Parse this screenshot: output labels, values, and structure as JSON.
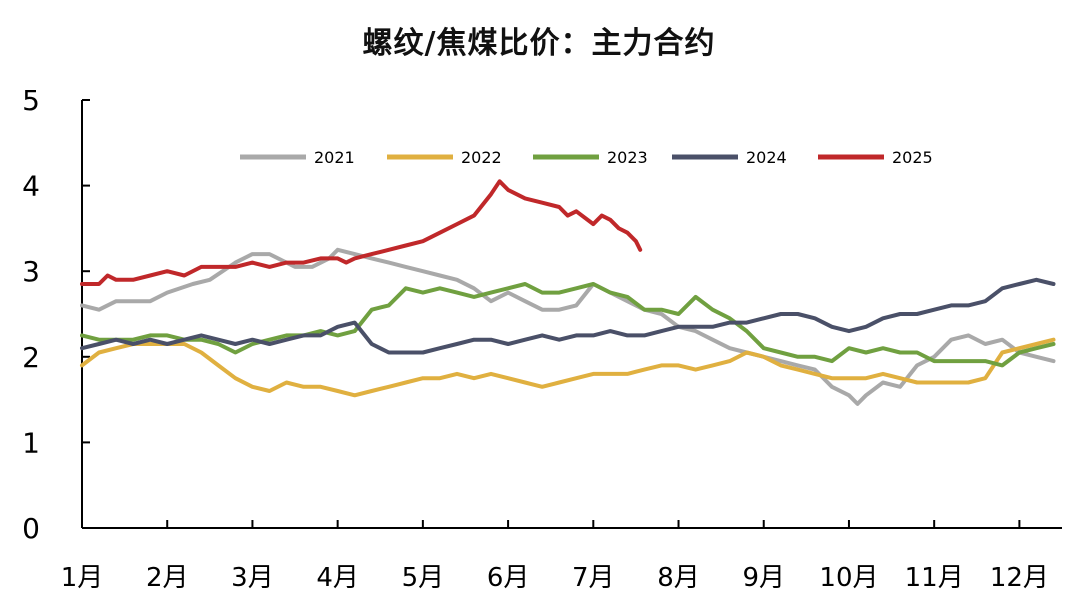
{
  "chart_data": {
    "type": "line",
    "title": "螺纹/焦煤比价：主力合约",
    "xlabel": "",
    "ylabel": "",
    "x_categories": [
      "1月",
      "2月",
      "3月",
      "4月",
      "5月",
      "6月",
      "7月",
      "8月",
      "9月",
      "10月",
      "11月",
      "12月"
    ],
    "ylim": [
      0,
      5
    ],
    "yticks": [
      0,
      1,
      2,
      3,
      4,
      5
    ],
    "grid": false,
    "legend_position": "top-center",
    "series": [
      {
        "name": "2021",
        "color": "#a9a9a9",
        "points": [
          [
            0,
            2.6
          ],
          [
            0.2,
            2.55
          ],
          [
            0.4,
            2.65
          ],
          [
            0.8,
            2.65
          ],
          [
            1.0,
            2.75
          ],
          [
            1.3,
            2.85
          ],
          [
            1.5,
            2.9
          ],
          [
            1.8,
            3.1
          ],
          [
            2.0,
            3.2
          ],
          [
            2.2,
            3.2
          ],
          [
            2.5,
            3.05
          ],
          [
            2.7,
            3.05
          ],
          [
            2.9,
            3.15
          ],
          [
            3.0,
            3.25
          ],
          [
            3.2,
            3.2
          ],
          [
            3.4,
            3.15
          ],
          [
            3.6,
            3.1
          ],
          [
            3.8,
            3.05
          ],
          [
            4.0,
            3.0
          ],
          [
            4.2,
            2.95
          ],
          [
            4.4,
            2.9
          ],
          [
            4.6,
            2.8
          ],
          [
            4.8,
            2.65
          ],
          [
            5.0,
            2.75
          ],
          [
            5.2,
            2.65
          ],
          [
            5.4,
            2.55
          ],
          [
            5.6,
            2.55
          ],
          [
            5.8,
            2.6
          ],
          [
            6.0,
            2.85
          ],
          [
            6.2,
            2.75
          ],
          [
            6.4,
            2.65
          ],
          [
            6.6,
            2.55
          ],
          [
            6.8,
            2.5
          ],
          [
            7.0,
            2.35
          ],
          [
            7.2,
            2.3
          ],
          [
            7.4,
            2.2
          ],
          [
            7.6,
            2.1
          ],
          [
            7.8,
            2.05
          ],
          [
            8.0,
            2.0
          ],
          [
            8.2,
            1.95
          ],
          [
            8.4,
            1.9
          ],
          [
            8.6,
            1.85
          ],
          [
            8.8,
            1.65
          ],
          [
            9.0,
            1.55
          ],
          [
            9.1,
            1.45
          ],
          [
            9.2,
            1.55
          ],
          [
            9.4,
            1.7
          ],
          [
            9.6,
            1.65
          ],
          [
            9.8,
            1.9
          ],
          [
            10.0,
            2.0
          ],
          [
            10.2,
            2.2
          ],
          [
            10.4,
            2.25
          ],
          [
            10.6,
            2.15
          ],
          [
            10.8,
            2.2
          ],
          [
            11.0,
            2.05
          ],
          [
            11.2,
            2.0
          ],
          [
            11.4,
            1.95
          ]
        ]
      },
      {
        "name": "2022",
        "color": "#e0b040",
        "points": [
          [
            0,
            1.9
          ],
          [
            0.2,
            2.05
          ],
          [
            0.4,
            2.1
          ],
          [
            0.6,
            2.15
          ],
          [
            0.8,
            2.15
          ],
          [
            1.0,
            2.15
          ],
          [
            1.2,
            2.15
          ],
          [
            1.4,
            2.05
          ],
          [
            1.6,
            1.9
          ],
          [
            1.8,
            1.75
          ],
          [
            2.0,
            1.65
          ],
          [
            2.2,
            1.6
          ],
          [
            2.4,
            1.7
          ],
          [
            2.6,
            1.65
          ],
          [
            2.8,
            1.65
          ],
          [
            3.0,
            1.6
          ],
          [
            3.2,
            1.55
          ],
          [
            3.4,
            1.6
          ],
          [
            3.6,
            1.65
          ],
          [
            3.8,
            1.7
          ],
          [
            4.0,
            1.75
          ],
          [
            4.2,
            1.75
          ],
          [
            4.4,
            1.8
          ],
          [
            4.6,
            1.75
          ],
          [
            4.8,
            1.8
          ],
          [
            5.0,
            1.75
          ],
          [
            5.2,
            1.7
          ],
          [
            5.4,
            1.65
          ],
          [
            5.6,
            1.7
          ],
          [
            5.8,
            1.75
          ],
          [
            6.0,
            1.8
          ],
          [
            6.2,
            1.8
          ],
          [
            6.4,
            1.8
          ],
          [
            6.6,
            1.85
          ],
          [
            6.8,
            1.9
          ],
          [
            7.0,
            1.9
          ],
          [
            7.2,
            1.85
          ],
          [
            7.4,
            1.9
          ],
          [
            7.6,
            1.95
          ],
          [
            7.8,
            2.05
          ],
          [
            8.0,
            2.0
          ],
          [
            8.2,
            1.9
          ],
          [
            8.4,
            1.85
          ],
          [
            8.6,
            1.8
          ],
          [
            8.8,
            1.75
          ],
          [
            9.0,
            1.75
          ],
          [
            9.2,
            1.75
          ],
          [
            9.4,
            1.8
          ],
          [
            9.6,
            1.75
          ],
          [
            9.8,
            1.7
          ],
          [
            10.0,
            1.7
          ],
          [
            10.2,
            1.7
          ],
          [
            10.4,
            1.7
          ],
          [
            10.6,
            1.75
          ],
          [
            10.8,
            2.05
          ],
          [
            11.0,
            2.1
          ],
          [
            11.2,
            2.15
          ],
          [
            11.4,
            2.2
          ]
        ]
      },
      {
        "name": "2023",
        "color": "#70a040",
        "points": [
          [
            0,
            2.25
          ],
          [
            0.2,
            2.2
          ],
          [
            0.4,
            2.2
          ],
          [
            0.6,
            2.2
          ],
          [
            0.8,
            2.25
          ],
          [
            1.0,
            2.25
          ],
          [
            1.2,
            2.2
          ],
          [
            1.4,
            2.2
          ],
          [
            1.6,
            2.15
          ],
          [
            1.8,
            2.05
          ],
          [
            2.0,
            2.15
          ],
          [
            2.2,
            2.2
          ],
          [
            2.4,
            2.25
          ],
          [
            2.6,
            2.25
          ],
          [
            2.8,
            2.3
          ],
          [
            3.0,
            2.25
          ],
          [
            3.2,
            2.3
          ],
          [
            3.4,
            2.55
          ],
          [
            3.6,
            2.6
          ],
          [
            3.8,
            2.8
          ],
          [
            4.0,
            2.75
          ],
          [
            4.2,
            2.8
          ],
          [
            4.4,
            2.75
          ],
          [
            4.6,
            2.7
          ],
          [
            4.8,
            2.75
          ],
          [
            5.0,
            2.8
          ],
          [
            5.2,
            2.85
          ],
          [
            5.4,
            2.75
          ],
          [
            5.6,
            2.75
          ],
          [
            5.8,
            2.8
          ],
          [
            6.0,
            2.85
          ],
          [
            6.2,
            2.75
          ],
          [
            6.4,
            2.7
          ],
          [
            6.6,
            2.55
          ],
          [
            6.8,
            2.55
          ],
          [
            7.0,
            2.5
          ],
          [
            7.2,
            2.7
          ],
          [
            7.4,
            2.55
          ],
          [
            7.6,
            2.45
          ],
          [
            7.8,
            2.3
          ],
          [
            8.0,
            2.1
          ],
          [
            8.2,
            2.05
          ],
          [
            8.4,
            2.0
          ],
          [
            8.6,
            2.0
          ],
          [
            8.8,
            1.95
          ],
          [
            9.0,
            2.1
          ],
          [
            9.2,
            2.05
          ],
          [
            9.4,
            2.1
          ],
          [
            9.6,
            2.05
          ],
          [
            9.8,
            2.05
          ],
          [
            10.0,
            1.95
          ],
          [
            10.2,
            1.95
          ],
          [
            10.4,
            1.95
          ],
          [
            10.6,
            1.95
          ],
          [
            10.8,
            1.9
          ],
          [
            11.0,
            2.05
          ],
          [
            11.2,
            2.1
          ],
          [
            11.4,
            2.15
          ]
        ]
      },
      {
        "name": "2024",
        "color": "#4a5068",
        "points": [
          [
            0,
            2.1
          ],
          [
            0.2,
            2.15
          ],
          [
            0.4,
            2.2
          ],
          [
            0.6,
            2.15
          ],
          [
            0.8,
            2.2
          ],
          [
            1.0,
            2.15
          ],
          [
            1.2,
            2.2
          ],
          [
            1.4,
            2.25
          ],
          [
            1.6,
            2.2
          ],
          [
            1.8,
            2.15
          ],
          [
            2.0,
            2.2
          ],
          [
            2.2,
            2.15
          ],
          [
            2.4,
            2.2
          ],
          [
            2.6,
            2.25
          ],
          [
            2.8,
            2.25
          ],
          [
            3.0,
            2.35
          ],
          [
            3.2,
            2.4
          ],
          [
            3.4,
            2.15
          ],
          [
            3.6,
            2.05
          ],
          [
            3.8,
            2.05
          ],
          [
            4.0,
            2.05
          ],
          [
            4.2,
            2.1
          ],
          [
            4.4,
            2.15
          ],
          [
            4.6,
            2.2
          ],
          [
            4.8,
            2.2
          ],
          [
            5.0,
            2.15
          ],
          [
            5.2,
            2.2
          ],
          [
            5.4,
            2.25
          ],
          [
            5.6,
            2.2
          ],
          [
            5.8,
            2.25
          ],
          [
            6.0,
            2.25
          ],
          [
            6.2,
            2.3
          ],
          [
            6.4,
            2.25
          ],
          [
            6.6,
            2.25
          ],
          [
            6.8,
            2.3
          ],
          [
            7.0,
            2.35
          ],
          [
            7.2,
            2.35
          ],
          [
            7.4,
            2.35
          ],
          [
            7.6,
            2.4
          ],
          [
            7.8,
            2.4
          ],
          [
            8.0,
            2.45
          ],
          [
            8.2,
            2.5
          ],
          [
            8.4,
            2.5
          ],
          [
            8.6,
            2.45
          ],
          [
            8.8,
            2.35
          ],
          [
            9.0,
            2.3
          ],
          [
            9.2,
            2.35
          ],
          [
            9.4,
            2.45
          ],
          [
            9.6,
            2.5
          ],
          [
            9.8,
            2.5
          ],
          [
            10.0,
            2.55
          ],
          [
            10.2,
            2.6
          ],
          [
            10.4,
            2.6
          ],
          [
            10.6,
            2.65
          ],
          [
            10.8,
            2.8
          ],
          [
            11.0,
            2.85
          ],
          [
            11.2,
            2.9
          ],
          [
            11.4,
            2.85
          ]
        ]
      },
      {
        "name": "2025",
        "color": "#c0282a",
        "points": [
          [
            0,
            2.85
          ],
          [
            0.2,
            2.85
          ],
          [
            0.3,
            2.95
          ],
          [
            0.4,
            2.9
          ],
          [
            0.6,
            2.9
          ],
          [
            0.8,
            2.95
          ],
          [
            1.0,
            3.0
          ],
          [
            1.2,
            2.95
          ],
          [
            1.4,
            3.05
          ],
          [
            1.6,
            3.05
          ],
          [
            1.8,
            3.05
          ],
          [
            2.0,
            3.1
          ],
          [
            2.2,
            3.05
          ],
          [
            2.4,
            3.1
          ],
          [
            2.6,
            3.1
          ],
          [
            2.8,
            3.15
          ],
          [
            3.0,
            3.15
          ],
          [
            3.1,
            3.1
          ],
          [
            3.2,
            3.15
          ],
          [
            3.4,
            3.2
          ],
          [
            3.6,
            3.25
          ],
          [
            3.8,
            3.3
          ],
          [
            4.0,
            3.35
          ],
          [
            4.2,
            3.45
          ],
          [
            4.4,
            3.55
          ],
          [
            4.6,
            3.65
          ],
          [
            4.8,
            3.9
          ],
          [
            4.9,
            4.05
          ],
          [
            5.0,
            3.95
          ],
          [
            5.2,
            3.85
          ],
          [
            5.4,
            3.8
          ],
          [
            5.6,
            3.75
          ],
          [
            5.7,
            3.65
          ],
          [
            5.8,
            3.7
          ],
          [
            6.0,
            3.55
          ],
          [
            6.1,
            3.65
          ],
          [
            6.2,
            3.6
          ],
          [
            6.3,
            3.5
          ],
          [
            6.4,
            3.45
          ],
          [
            6.5,
            3.35
          ],
          [
            6.55,
            3.25
          ]
        ]
      }
    ]
  }
}
